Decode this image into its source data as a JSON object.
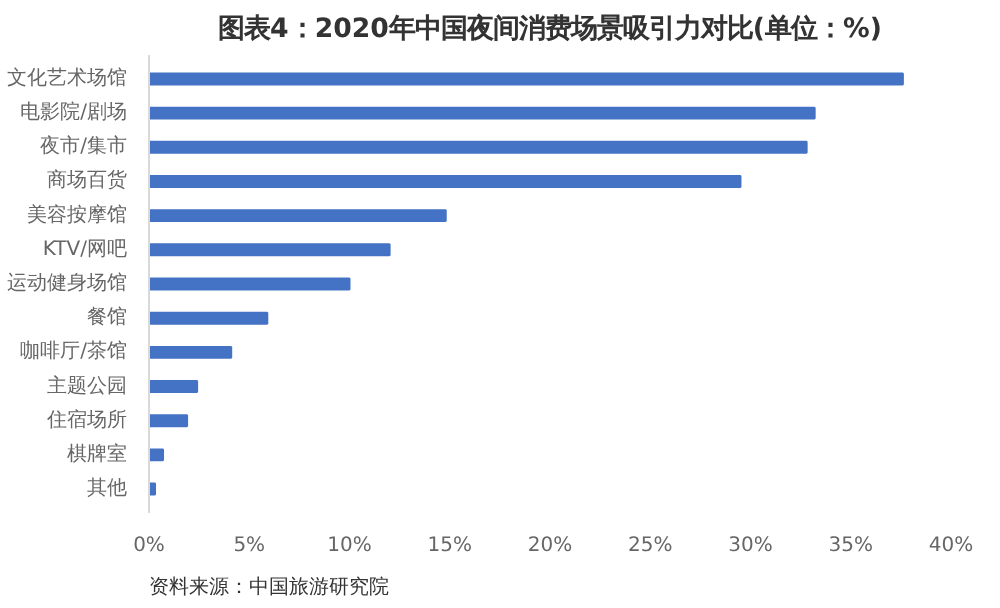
{
  "chart_data": {
    "type": "bar",
    "orientation": "horizontal",
    "title": "图表4：2020年中国夜间消费场景吸引力对比(单位：%)",
    "categories": [
      "文化艺术场馆",
      "电影院/剧场",
      "夜市/集市",
      "商场百货",
      "美容按摩馆",
      "KTV/网吧",
      "运动健身场馆",
      "餐馆",
      "咖啡厅/茶馆",
      "主题公园",
      "住宿场所",
      "棋牌室",
      "其他"
    ],
    "values": [
      37.6,
      33.2,
      32.8,
      29.5,
      14.8,
      12.0,
      10.0,
      5.9,
      4.1,
      2.4,
      1.9,
      0.7,
      0.3
    ],
    "color": "#4472c4",
    "xlim": [
      0,
      40
    ],
    "xticks": [
      {
        "value": 0,
        "label": "0%"
      },
      {
        "value": 5,
        "label": "5%"
      },
      {
        "value": 10,
        "label": "10%"
      },
      {
        "value": 15,
        "label": "15%"
      },
      {
        "value": 20,
        "label": "20%"
      },
      {
        "value": 25,
        "label": "25%"
      },
      {
        "value": 30,
        "label": "30%"
      },
      {
        "value": 35,
        "label": "35%"
      },
      {
        "value": 40,
        "label": "40%"
      }
    ],
    "grid": false,
    "annotations": [
      "资料来源：中国旅游研究院"
    ]
  }
}
